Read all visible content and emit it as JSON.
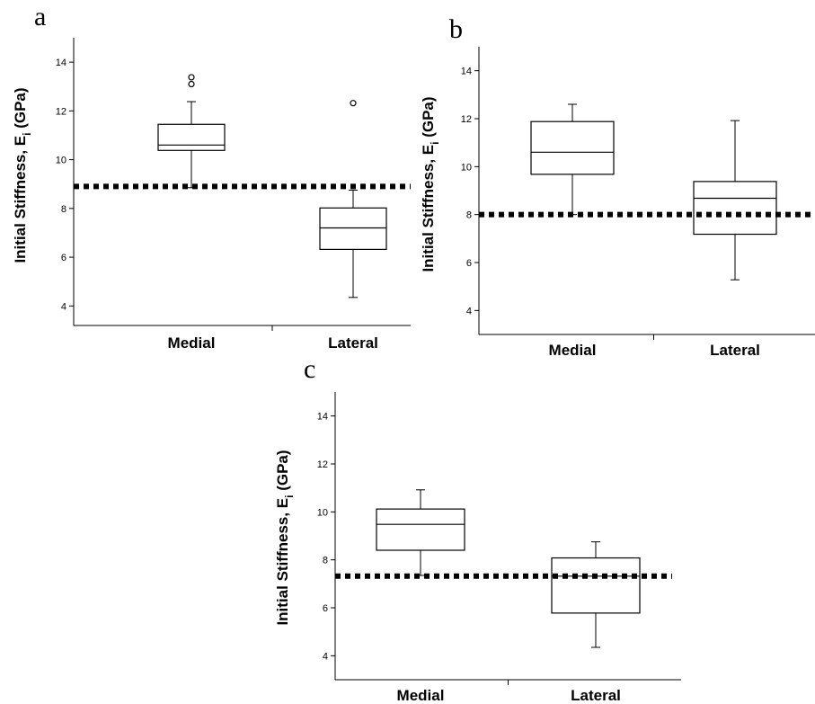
{
  "chart_data": [
    {
      "panel": "a",
      "type": "box",
      "ylabel_main": "Initial Stiffness, E",
      "ylabel_sub": "i",
      "ylabel_tail": " (GPa)",
      "categories": [
        "Medial",
        "Lateral"
      ],
      "ylim": [
        3.2,
        15
      ],
      "yticks": [
        4,
        6,
        8,
        10,
        12,
        14
      ],
      "boxes": [
        {
          "category": "Medial",
          "whisker_low": 8.85,
          "q1": 10.38,
          "median": 10.6,
          "q3": 11.45,
          "whisker_high": 12.38,
          "outliers": [
            13.1,
            13.38
          ]
        },
        {
          "category": "Lateral",
          "whisker_low": 4.35,
          "q1": 6.32,
          "median": 7.2,
          "q3": 8.02,
          "whisker_high": 8.75,
          "outliers": [
            12.32
          ]
        }
      ],
      "reference_line": 8.9
    },
    {
      "panel": "b",
      "type": "box",
      "ylabel_main": "Initial Stiffness, E",
      "ylabel_sub": "i",
      "ylabel_tail": " (GPa)",
      "categories": [
        "Medial",
        "Lateral"
      ],
      "ylim": [
        3.0,
        15
      ],
      "yticks": [
        4,
        6,
        8,
        10,
        12,
        14
      ],
      "boxes": [
        {
          "category": "Medial",
          "whisker_low": 8.0,
          "q1": 9.68,
          "median": 10.6,
          "q3": 11.88,
          "whisker_high": 12.6,
          "outliers": []
        },
        {
          "category": "Lateral",
          "whisker_low": 5.28,
          "q1": 7.18,
          "median": 8.68,
          "q3": 9.38,
          "whisker_high": 11.92,
          "outliers": []
        }
      ],
      "reference_line": 8.0
    },
    {
      "panel": "c",
      "type": "box",
      "ylabel_main": "Initial Stiffness, E",
      "ylabel_sub": "i",
      "ylabel_tail": " (GPa)",
      "categories": [
        "Medial",
        "Lateral"
      ],
      "ylim": [
        3.0,
        15
      ],
      "yticks": [
        4,
        6,
        8,
        10,
        12,
        14
      ],
      "boxes": [
        {
          "category": "Medial",
          "whisker_low": 7.35,
          "q1": 8.4,
          "median": 9.48,
          "q3": 10.12,
          "whisker_high": 10.92,
          "outliers": []
        },
        {
          "category": "Lateral",
          "whisker_low": 4.35,
          "q1": 5.78,
          "median": 7.32,
          "q3": 8.08,
          "whisker_high": 8.75,
          "outliers": []
        }
      ],
      "reference_line": 7.32
    }
  ]
}
